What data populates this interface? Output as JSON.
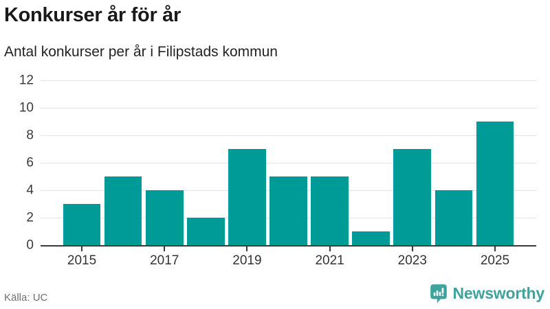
{
  "header": {
    "title": "Konkurser år för år",
    "subtitle": "Antal konkurser per år i Filipstads kommun"
  },
  "chart_data": {
    "type": "bar",
    "title": "Konkurser år för år",
    "subtitle": "Antal konkurser per år i Filipstads kommun",
    "categories": [
      "2015",
      "2016",
      "2017",
      "2018",
      "2019",
      "2020",
      "2021",
      "2022",
      "2023",
      "2024",
      "2025"
    ],
    "values": [
      3,
      5,
      4,
      2,
      7,
      5,
      5,
      1,
      7,
      4,
      9
    ],
    "xlabel": "",
    "ylabel": "",
    "ylim": [
      0,
      12
    ],
    "yticks": [
      0,
      2,
      4,
      6,
      8,
      10,
      12
    ],
    "xtick_labels": [
      "2015",
      "2017",
      "2019",
      "2021",
      "2023",
      "2025"
    ],
    "bar_color": "#009B96",
    "gridline_color": "#e2e2e2",
    "axis_color": "#3a3a3a",
    "grid": true,
    "legend_position": "none"
  },
  "footer": {
    "source": "Källa: UC",
    "brand": "Newsworthy",
    "brand_color": "#3EA29D"
  }
}
